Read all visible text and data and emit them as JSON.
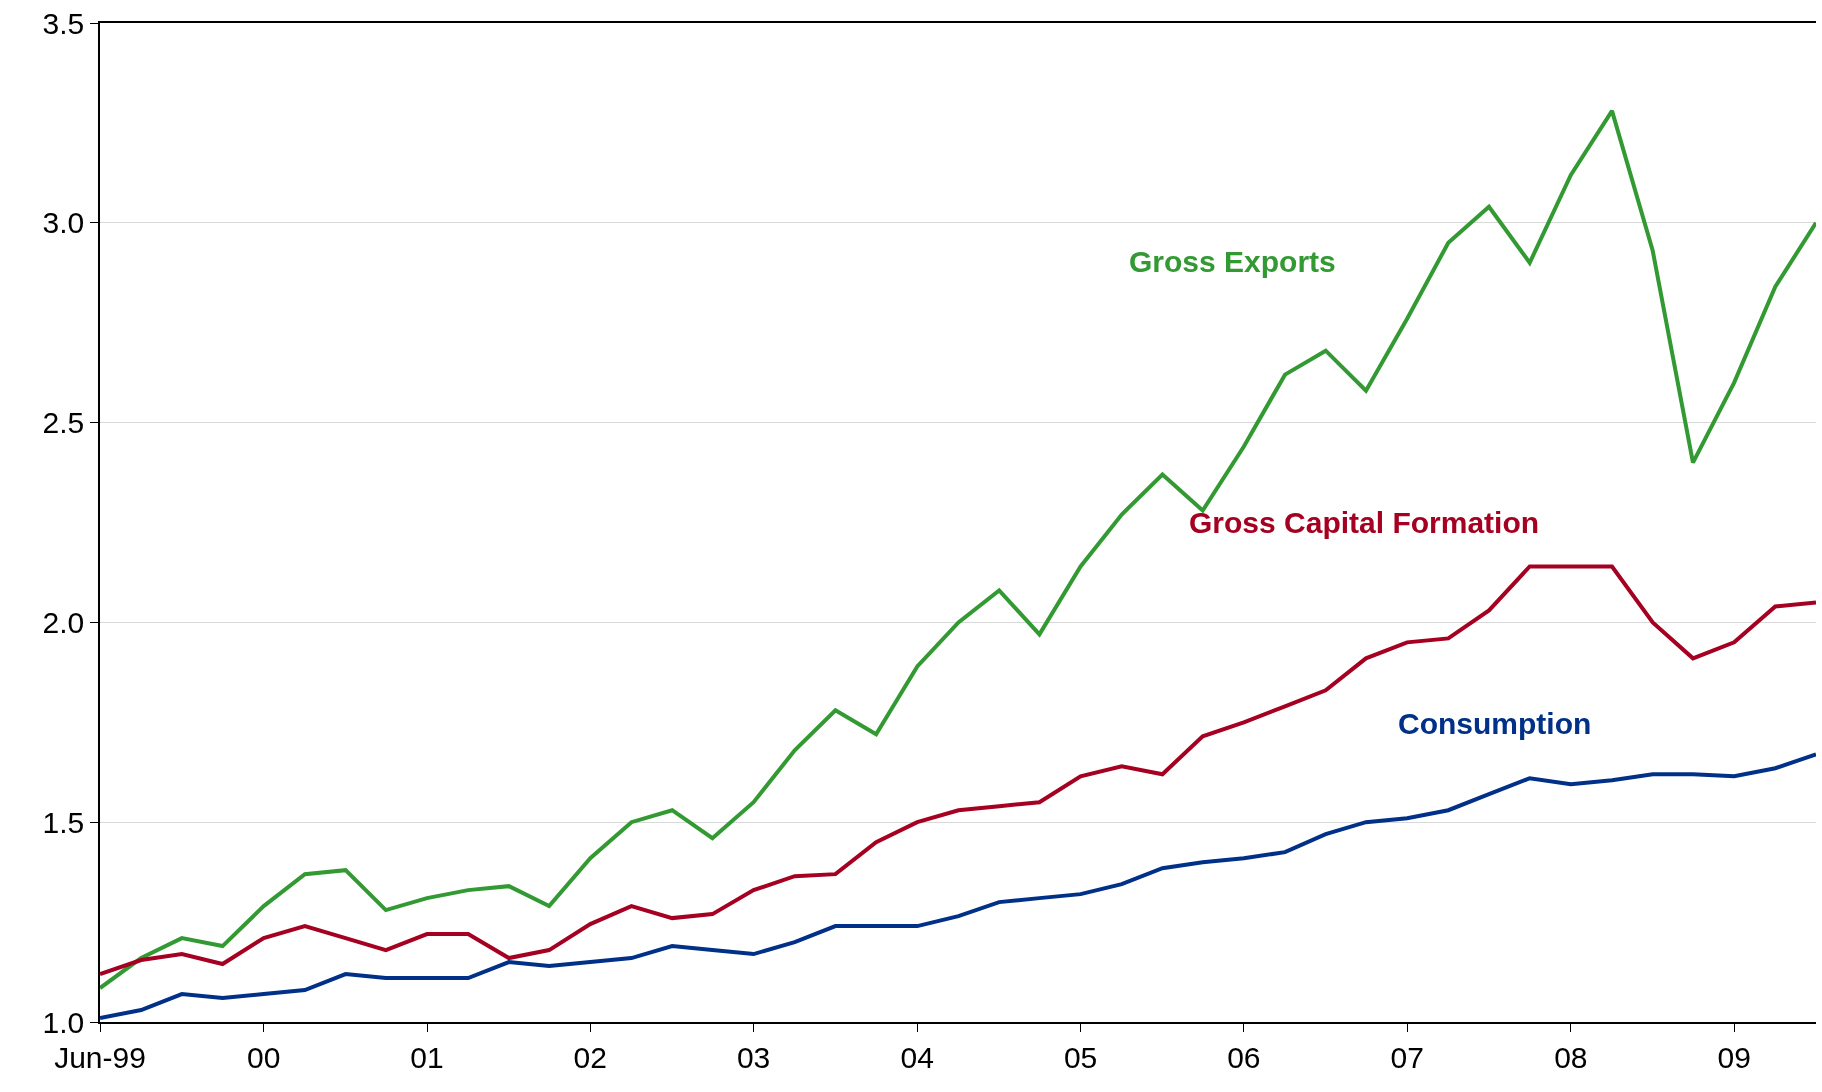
{
  "chart_data": {
    "type": "line",
    "x": [
      "1999-06",
      "1999-09",
      "1999-12",
      "2000-03",
      "2000-06",
      "2000-09",
      "2000-12",
      "2001-03",
      "2001-06",
      "2001-09",
      "2001-12",
      "2002-03",
      "2002-06",
      "2002-09",
      "2002-12",
      "2003-03",
      "2003-06",
      "2003-09",
      "2003-12",
      "2004-03",
      "2004-06",
      "2004-09",
      "2004-12",
      "2005-03",
      "2005-06",
      "2005-09",
      "2005-12",
      "2006-03",
      "2006-06",
      "2006-09",
      "2006-12",
      "2007-03",
      "2007-06",
      "2007-09",
      "2007-12",
      "2008-03",
      "2008-06",
      "2008-09",
      "2008-12",
      "2009-03",
      "2009-06",
      "2009-09",
      "2009-12"
    ],
    "series": [
      {
        "name": "Gross Exports",
        "color": "#339933",
        "values": [
          1.085,
          1.16,
          1.21,
          1.19,
          1.29,
          1.37,
          1.38,
          1.28,
          1.31,
          1.33,
          1.34,
          1.29,
          1.41,
          1.5,
          1.53,
          1.46,
          1.55,
          1.68,
          1.78,
          1.72,
          1.89,
          2.0,
          2.08,
          1.97,
          2.14,
          2.27,
          2.37,
          2.28,
          2.44,
          2.62,
          2.68,
          2.58,
          2.76,
          2.95,
          3.04,
          2.9,
          3.12,
          3.28,
          2.93,
          2.4,
          2.6,
          2.84,
          3.0
        ]
      },
      {
        "name": "Gross Capital Formation",
        "color": "#a50021",
        "values": [
          1.12,
          1.155,
          1.17,
          1.145,
          1.21,
          1.24,
          1.21,
          1.18,
          1.22,
          1.22,
          1.16,
          1.18,
          1.245,
          1.29,
          1.26,
          1.27,
          1.33,
          1.365,
          1.37,
          1.45,
          1.5,
          1.53,
          1.54,
          1.55,
          1.615,
          1.64,
          1.62,
          1.715,
          1.75,
          1.79,
          1.83,
          1.91,
          1.95,
          1.96,
          2.03,
          2.14,
          2.14,
          2.14,
          2.0,
          1.91,
          1.95,
          2.04,
          2.05
        ]
      },
      {
        "name": "Consumption",
        "color": "#003087",
        "values": [
          1.01,
          1.03,
          1.07,
          1.06,
          1.07,
          1.08,
          1.12,
          1.11,
          1.11,
          1.11,
          1.15,
          1.14,
          1.15,
          1.16,
          1.19,
          1.18,
          1.17,
          1.2,
          1.24,
          1.24,
          1.24,
          1.265,
          1.3,
          1.31,
          1.32,
          1.345,
          1.385,
          1.4,
          1.41,
          1.425,
          1.47,
          1.5,
          1.51,
          1.53,
          1.57,
          1.61,
          1.595,
          1.605,
          1.62,
          1.62,
          1.615,
          1.635,
          1.67
        ]
      }
    ],
    "xlim": [
      "1999-06",
      "2009-12"
    ],
    "xticks": [
      {
        "value": "1999-06",
        "label": "Jun-99"
      },
      {
        "value": "2000-06",
        "label": "00"
      },
      {
        "value": "2001-06",
        "label": "01"
      },
      {
        "value": "2002-06",
        "label": "02"
      },
      {
        "value": "2003-06",
        "label": "03"
      },
      {
        "value": "2004-06",
        "label": "04"
      },
      {
        "value": "2005-06",
        "label": "05"
      },
      {
        "value": "2006-06",
        "label": "06"
      },
      {
        "value": "2007-06",
        "label": "07"
      },
      {
        "value": "2008-06",
        "label": "08"
      },
      {
        "value": "2009-06",
        "label": "09"
      }
    ],
    "ylim": [
      1.0,
      3.5
    ],
    "yticks": [
      {
        "value": 1.0,
        "label": "1.0"
      },
      {
        "value": 1.5,
        "label": "1.5"
      },
      {
        "value": 2.0,
        "label": "2.0"
      },
      {
        "value": 2.5,
        "label": "2.5"
      },
      {
        "value": 3.0,
        "label": "3.0"
      },
      {
        "value": 3.5,
        "label": "3.5"
      }
    ],
    "grid": "y",
    "legend": false,
    "marker": "none",
    "line_style": "solid"
  }
}
